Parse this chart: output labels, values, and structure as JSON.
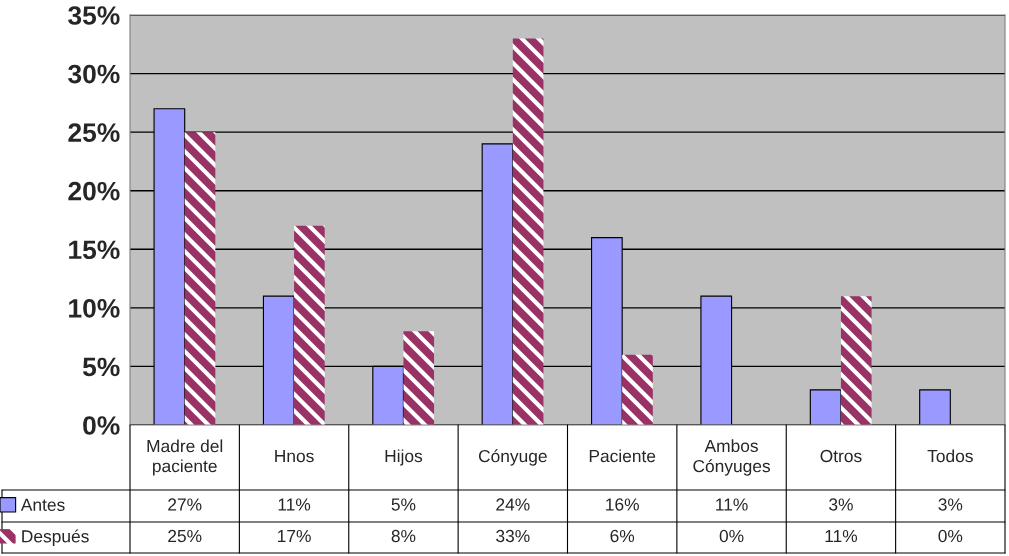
{
  "chart_data": {
    "type": "bar",
    "categories": [
      "Madre del paciente",
      "Hnos",
      "Hijos",
      "Cónyuge",
      "Paciente",
      "Ambos Cónyuges",
      "Otros",
      "Todos"
    ],
    "series": [
      {
        "name": "Antes",
        "color": "#9999ff",
        "values": [
          27,
          11,
          5,
          24,
          16,
          11,
          3,
          3
        ],
        "value_labels": [
          "27%",
          "11%",
          "5%",
          "24%",
          "16%",
          "11%",
          "3%",
          "3%"
        ]
      },
      {
        "name": "Después",
        "color": "#993366",
        "values": [
          25,
          17,
          8,
          33,
          6,
          0,
          11,
          0
        ],
        "value_labels": [
          "25%",
          "17%",
          "8%",
          "33%",
          "6%",
          "0%",
          "11%",
          "0%"
        ]
      }
    ],
    "ylim": [
      0,
      35
    ],
    "yticks": [
      {
        "value": 0,
        "label": "0%"
      },
      {
        "value": 5,
        "label": "5%"
      },
      {
        "value": 10,
        "label": "10%"
      },
      {
        "value": 15,
        "label": "15%"
      },
      {
        "value": 20,
        "label": "20%"
      },
      {
        "value": 25,
        "label": "25%"
      },
      {
        "value": 30,
        "label": "30%"
      },
      {
        "value": 35,
        "label": "35%"
      }
    ],
    "grid": "y",
    "legend": "bottom"
  }
}
